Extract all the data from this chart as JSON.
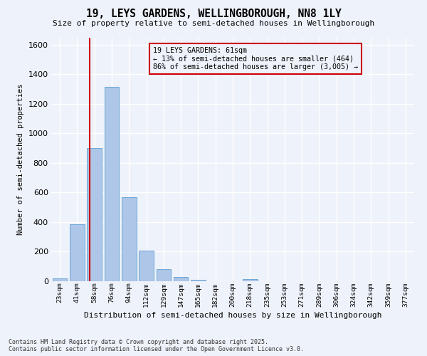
{
  "title": "19, LEYS GARDENS, WELLINGBOROUGH, NN8 1LY",
  "subtitle": "Size of property relative to semi-detached houses in Wellingborough",
  "xlabel": "Distribution of semi-detached houses by size in Wellingborough",
  "ylabel": "Number of semi-detached properties",
  "categories": [
    "23sqm",
    "41sqm",
    "58sqm",
    "76sqm",
    "94sqm",
    "112sqm",
    "129sqm",
    "147sqm",
    "165sqm",
    "182sqm",
    "200sqm",
    "218sqm",
    "235sqm",
    "253sqm",
    "271sqm",
    "289sqm",
    "306sqm",
    "324sqm",
    "342sqm",
    "359sqm",
    "377sqm"
  ],
  "values": [
    18,
    383,
    900,
    1315,
    570,
    205,
    80,
    27,
    12,
    0,
    0,
    15,
    0,
    0,
    0,
    0,
    0,
    0,
    0,
    0,
    0
  ],
  "bar_color": "#aec6e8",
  "bar_edge_color": "#5a9fd4",
  "highlight_line_color": "#cc0000",
  "annotation_text": "19 LEYS GARDENS: 61sqm\n← 13% of semi-detached houses are smaller (464)\n86% of semi-detached houses are larger (3,005) →",
  "annotation_box_color": "#cc0000",
  "ylim": [
    0,
    1650
  ],
  "yticks": [
    0,
    200,
    400,
    600,
    800,
    1000,
    1200,
    1400,
    1600
  ],
  "background_color": "#eef2fa",
  "grid_color": "#ffffff",
  "footer_text": "Contains HM Land Registry data © Crown copyright and database right 2025.\nContains public sector information licensed under the Open Government Licence v3.0.",
  "highlight_bin_index": 2,
  "num_bins": 21,
  "property_size": 61
}
